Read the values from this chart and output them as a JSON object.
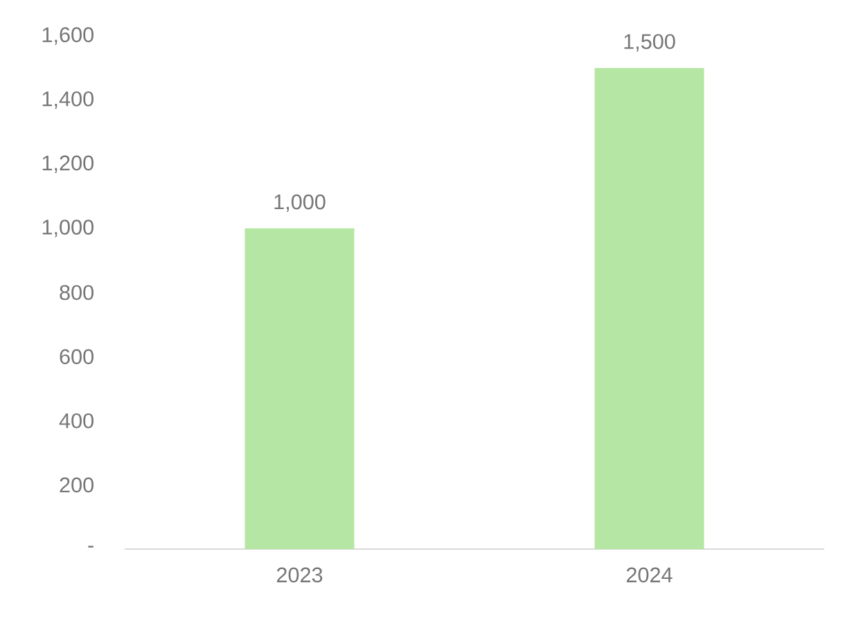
{
  "chart_data": {
    "type": "bar",
    "categories": [
      "2023",
      "2024"
    ],
    "values": [
      1000,
      1500
    ],
    "value_labels": [
      "1,000",
      "1,500"
    ],
    "color": "#b5e6a3",
    "ylim": [
      0,
      1600
    ],
    "yticks": [
      {
        "value": 0,
        "label": "-"
      },
      200,
      400,
      600,
      800,
      {
        "value": 1000,
        "label": "1,000"
      },
      {
        "value": 1200,
        "label": "1,200"
      },
      {
        "value": 1400,
        "label": "1,400"
      },
      {
        "value": 1600,
        "label": "1,600"
      }
    ],
    "grid": false
  }
}
